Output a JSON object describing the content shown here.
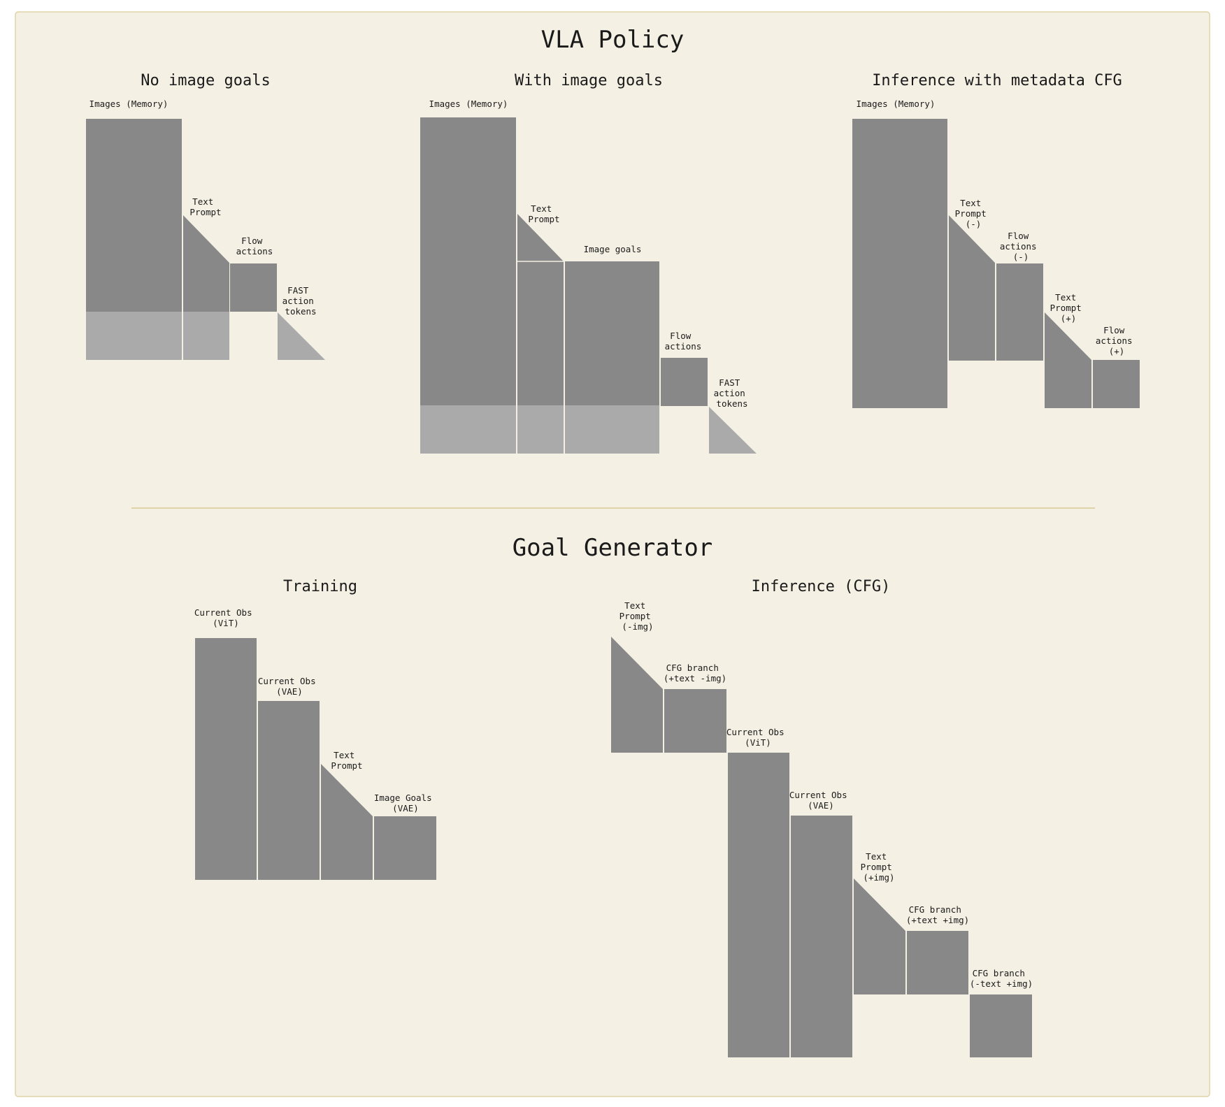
{
  "colors": {
    "panel_background": "#f4f0e4",
    "panel_border": "#ddd3a6",
    "divider": "#ddd3a6",
    "block_dark": "#888888",
    "block_light": "#aaaaaa",
    "separator": "#f4f0e4"
  },
  "vla_policy": {
    "title": "VLA Policy",
    "no_image_goals": {
      "title": "No image goals",
      "labels": {
        "images_memory": "Images (Memory)",
        "text_prompt": [
          "Text",
          "Prompt"
        ],
        "flow_actions": [
          "Flow",
          "actions"
        ],
        "fast_action_tokens": [
          "FAST",
          "action",
          "tokens"
        ]
      }
    },
    "with_image_goals": {
      "title": "With image goals",
      "labels": {
        "images_memory": "Images (Memory)",
        "text_prompt": [
          "Text",
          "Prompt"
        ],
        "image_goals": "Image goals",
        "flow_actions": [
          "Flow",
          "actions"
        ],
        "fast_action_tokens": [
          "FAST",
          "action",
          "tokens"
        ]
      }
    },
    "inference_metadata_cfg": {
      "title": "Inference with metadata CFG",
      "labels": {
        "images_memory": "Images (Memory)",
        "text_prompt_neg": [
          "Text",
          "Prompt",
          "(-)"
        ],
        "flow_actions_neg": [
          "Flow",
          "actions",
          "(-)"
        ],
        "text_prompt_pos": [
          "Text",
          "Prompt",
          "(+)"
        ],
        "flow_actions_pos": [
          "Flow",
          "actions",
          "(+)"
        ]
      }
    }
  },
  "goal_generator": {
    "title": "Goal Generator",
    "training": {
      "title": "Training",
      "labels": {
        "current_obs_vit": [
          "Current Obs",
          "(ViT)"
        ],
        "current_obs_vae": [
          "Current Obs",
          "(VAE)"
        ],
        "text_prompt": [
          "Text",
          "Prompt"
        ],
        "image_goals_vae": [
          "Image Goals",
          "(VAE)"
        ]
      }
    },
    "inference_cfg": {
      "title": "Inference (CFG)",
      "labels": {
        "text_prompt_no_img": [
          "Text",
          "Prompt",
          "(-img)"
        ],
        "cfg_branch_text_no_img": [
          "CFG branch",
          "(+text -img)"
        ],
        "current_obs_vit": [
          "Current Obs",
          "(ViT)"
        ],
        "current_obs_vae": [
          "Current Obs",
          "(VAE)"
        ],
        "text_prompt_img": [
          "Text",
          "Prompt",
          "(+img)"
        ],
        "cfg_branch_text_img": [
          "CFG branch",
          "(+text +img)"
        ],
        "cfg_branch_no_text_img": [
          "CFG branch",
          "(-text +img)"
        ]
      }
    }
  }
}
